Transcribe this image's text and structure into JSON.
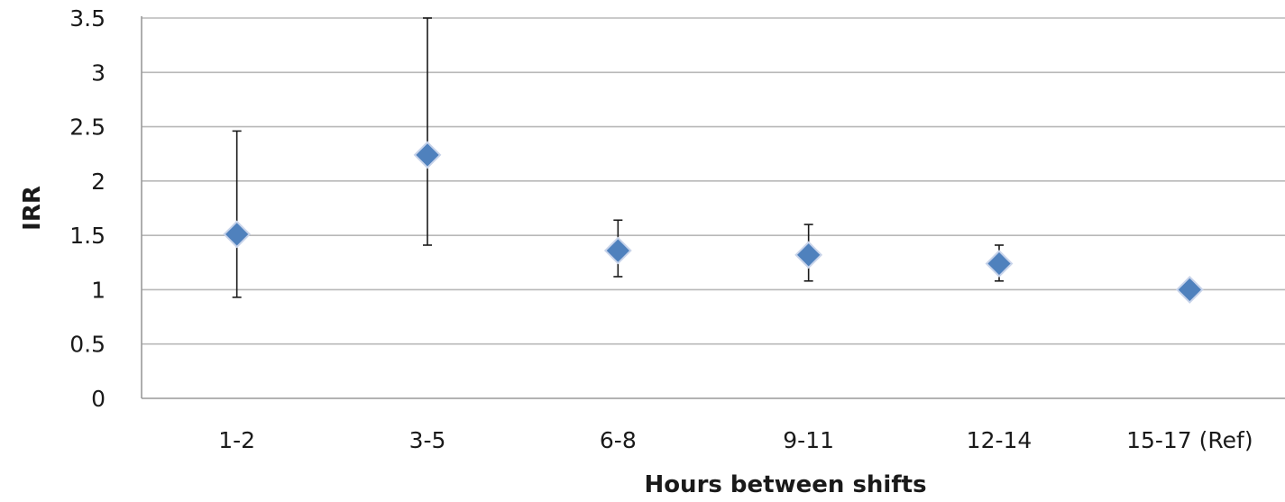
{
  "chart_data": {
    "type": "scatter",
    "title": "",
    "xlabel": "Hours between shifts",
    "ylabel": "IRR",
    "categories": [
      "1-2",
      "3-5",
      "6-8",
      "9-11",
      "12-14",
      "15-17 (Ref)"
    ],
    "series": [
      {
        "values": [
          1.51,
          2.24,
          1.36,
          1.32,
          1.24,
          1.0
        ],
        "error_low": [
          0.93,
          1.41,
          1.12,
          1.08,
          1.08,
          1.0
        ],
        "error_high": [
          2.46,
          3.5,
          1.64,
          1.6,
          1.41,
          1.0
        ],
        "marker": "diamond",
        "color": "#4f81bd"
      }
    ],
    "ylim": [
      0,
      3.5
    ],
    "yticks": [
      "0",
      "0.5",
      "1",
      "1.5",
      "2",
      "2.5",
      "3",
      "3.5"
    ],
    "grid": true,
    "legend": "none"
  }
}
